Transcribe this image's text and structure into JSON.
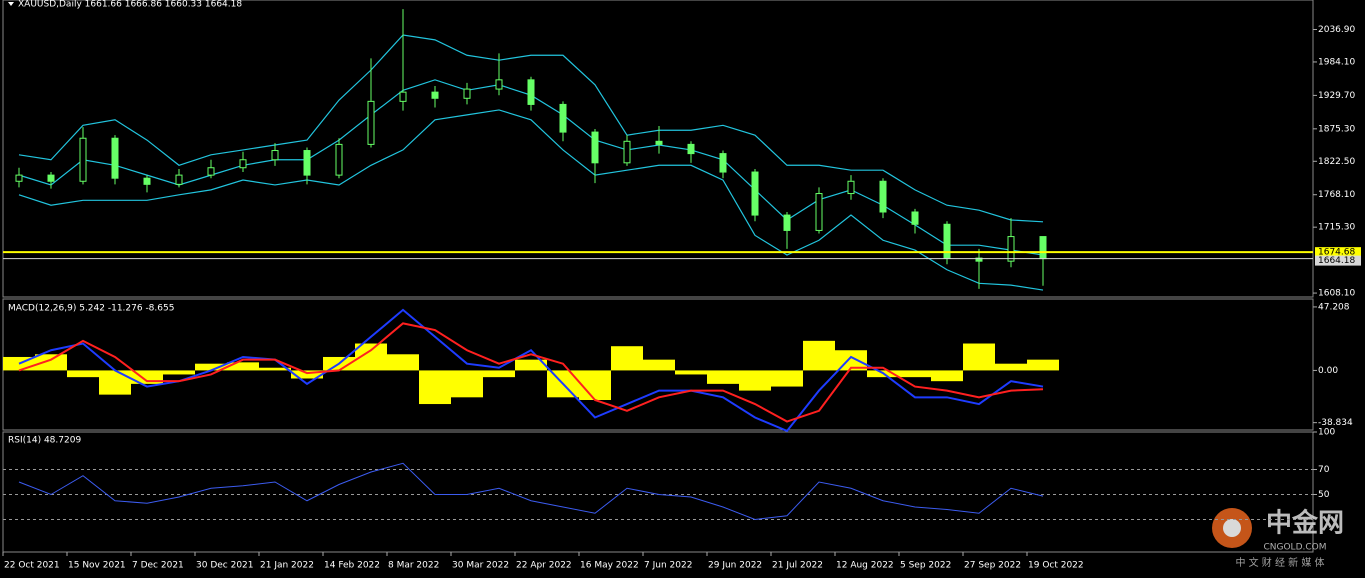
{
  "chart_data": [
    {
      "type": "candlestick",
      "title": "XAUUSD,Daily  1661.66 1666.86 1660.33 1664.18",
      "categories": [
        "22 Oct 2021",
        null,
        "15 Nov 2021",
        null,
        "7 Dec 2021",
        null,
        "30 Dec 2021",
        null,
        "21 Jan 2022",
        null,
        "14 Feb 2022",
        null,
        "8 Mar 2022",
        null,
        "30 Mar 2022",
        null,
        "22 Apr 2022",
        null,
        "16 May 2022",
        null,
        "7 Jun 2022",
        null,
        "29 Jun 2022",
        null,
        "21 Jul 2022",
        null,
        "12 Aug 2022",
        null,
        "5 Sep 2022",
        null,
        "27 Sep 2022",
        null,
        "19 Oct 2022"
      ],
      "open": [
        1790,
        1800,
        1790,
        1860,
        1795,
        1785,
        1800,
        1812,
        1825,
        1840,
        1800,
        1850,
        1920,
        1935,
        1925,
        1940,
        1955,
        1915,
        1870,
        1820,
        1855,
        1850,
        1835,
        1805,
        1735,
        1710,
        1770,
        1790,
        1740,
        1720,
        1665,
        1660,
        1700
      ],
      "high": [
        1812,
        1805,
        1878,
        1865,
        1800,
        1810,
        1825,
        1838,
        1852,
        1845,
        1860,
        1990,
        2070,
        1945,
        1950,
        1998,
        1960,
        1920,
        1875,
        1865,
        1880,
        1855,
        1840,
        1810,
        1740,
        1780,
        1800,
        1795,
        1745,
        1725,
        1680,
        1730,
        1700
      ],
      "low": [
        1780,
        1778,
        1785,
        1785,
        1772,
        1780,
        1795,
        1805,
        1815,
        1785,
        1795,
        1845,
        1905,
        1910,
        1915,
        1930,
        1905,
        1855,
        1787,
        1815,
        1835,
        1820,
        1795,
        1725,
        1680,
        1705,
        1760,
        1730,
        1705,
        1655,
        1615,
        1650,
        1620
      ],
      "close": [
        1800,
        1790,
        1860,
        1795,
        1785,
        1800,
        1812,
        1825,
        1840,
        1800,
        1850,
        1920,
        1935,
        1925,
        1940,
        1955,
        1915,
        1870,
        1820,
        1855,
        1850,
        1835,
        1805,
        1735,
        1710,
        1770,
        1790,
        1740,
        1720,
        1665,
        1660,
        1700,
        1664.18
      ],
      "color": "#66ff66",
      "bands": {
        "color": "#22c4dd",
        "upper": [
          1833,
          1825,
          1881,
          1890,
          1857,
          1816,
          1833,
          1841,
          1849,
          1857,
          1922,
          1971,
          2028,
          2020,
          1995,
          1987,
          1995,
          1995,
          1947,
          1865,
          1873,
          1873,
          1881,
          1865,
          1816,
          1816,
          1808,
          1808,
          1776,
          1751,
          1743,
          1727,
          1724
        ],
        "middle": [
          1800,
          1784,
          1825,
          1816,
          1800,
          1784,
          1800,
          1816,
          1825,
          1825,
          1857,
          1898,
          1938,
          1955,
          1938,
          1947,
          1930,
          1898,
          1857,
          1841,
          1849,
          1841,
          1825,
          1776,
          1727,
          1760,
          1776,
          1751,
          1719,
          1686,
          1686,
          1678,
          1670
        ],
        "lower": [
          1768,
          1751,
          1759,
          1759,
          1759,
          1768,
          1776,
          1792,
          1784,
          1792,
          1784,
          1816,
          1841,
          1890,
          1898,
          1906,
          1890,
          1841,
          1800,
          1808,
          1816,
          1816,
          1792,
          1702,
          1670,
          1694,
          1735,
          1694,
          1678,
          1646,
          1624,
          1621,
          1613
        ]
      },
      "ylim": [
        1601.7,
        2084.9
      ],
      "yticks": [
        {
          "value": 2036.9,
          "label": "2036.90"
        },
        {
          "value": 1984.1,
          "label": "1984.10"
        },
        {
          "value": 1929.7,
          "label": "1929.70"
        },
        {
          "value": 1875.3,
          "label": "1875.30"
        },
        {
          "value": 1822.5,
          "label": "1822.50"
        },
        {
          "value": 1768.1,
          "label": "1768.10"
        },
        {
          "value": 1715.3,
          "label": "1715.30"
        },
        {
          "value": 1608.1,
          "label": "1608.10"
        }
      ],
      "price_lines": [
        {
          "value": 1674.68,
          "color": "#ffff00"
        },
        {
          "value": 1664.18,
          "color": "#d8d8d8"
        }
      ]
    },
    {
      "type": "macd",
      "title": "MACD(12,26,9) 5.242 -11.276 -8.655",
      "histogram": [
        10,
        12,
        -5,
        -18,
        -10,
        -3,
        5,
        6,
        2,
        -6,
        10,
        20,
        12,
        -25,
        -20,
        -5,
        8,
        -20,
        -22,
        18,
        8,
        -3,
        -10,
        -15,
        -12,
        22,
        15,
        -5,
        -5,
        -8,
        20,
        5,
        8
      ],
      "histogram_color": "#ffff00",
      "macd": [
        5,
        15,
        20,
        0,
        -12,
        -8,
        0,
        10,
        8,
        -10,
        5,
        25,
        45,
        25,
        5,
        2,
        15,
        -10,
        -35,
        -25,
        -15,
        -15,
        -20,
        -35,
        -45,
        -15,
        10,
        -2,
        -20,
        -20,
        -25,
        -8,
        -12
      ],
      "macd_color": "#1e3cff",
      "signal": [
        0,
        8,
        22,
        10,
        -8,
        -8,
        -3,
        8,
        8,
        -2,
        0,
        15,
        35,
        30,
        15,
        5,
        12,
        5,
        -22,
        -30,
        -20,
        -15,
        -15,
        -25,
        -38,
        -30,
        2,
        2,
        -12,
        -15,
        -20,
        -15,
        -14
      ],
      "signal_color": "#ff2020",
      "ylim": [
        -44.3,
        53.1
      ],
      "yticks": [
        47.208,
        {
          "value": 0,
          "label": "0.00"
        },
        -38.834
      ]
    },
    {
      "type": "line",
      "title": "RSI(14) 48.7209",
      "values": [
        60,
        50,
        65,
        45,
        43,
        48,
        55,
        57,
        60,
        45,
        58,
        68,
        75,
        50,
        50,
        55,
        45,
        40,
        35,
        55,
        50,
        48,
        40,
        30,
        33,
        60,
        55,
        45,
        40,
        38,
        35,
        55,
        48.7209
      ],
      "color": "#3c5cf0",
      "ylim": [
        4,
        100
      ],
      "yticks": [
        100,
        70,
        50
      ],
      "levels": [
        70,
        50,
        30
      ]
    }
  ],
  "watermark": {
    "name": "中金网",
    "site": "CNGOLD.COM",
    "slogan": "中 文 财 经 新 媒 体"
  }
}
